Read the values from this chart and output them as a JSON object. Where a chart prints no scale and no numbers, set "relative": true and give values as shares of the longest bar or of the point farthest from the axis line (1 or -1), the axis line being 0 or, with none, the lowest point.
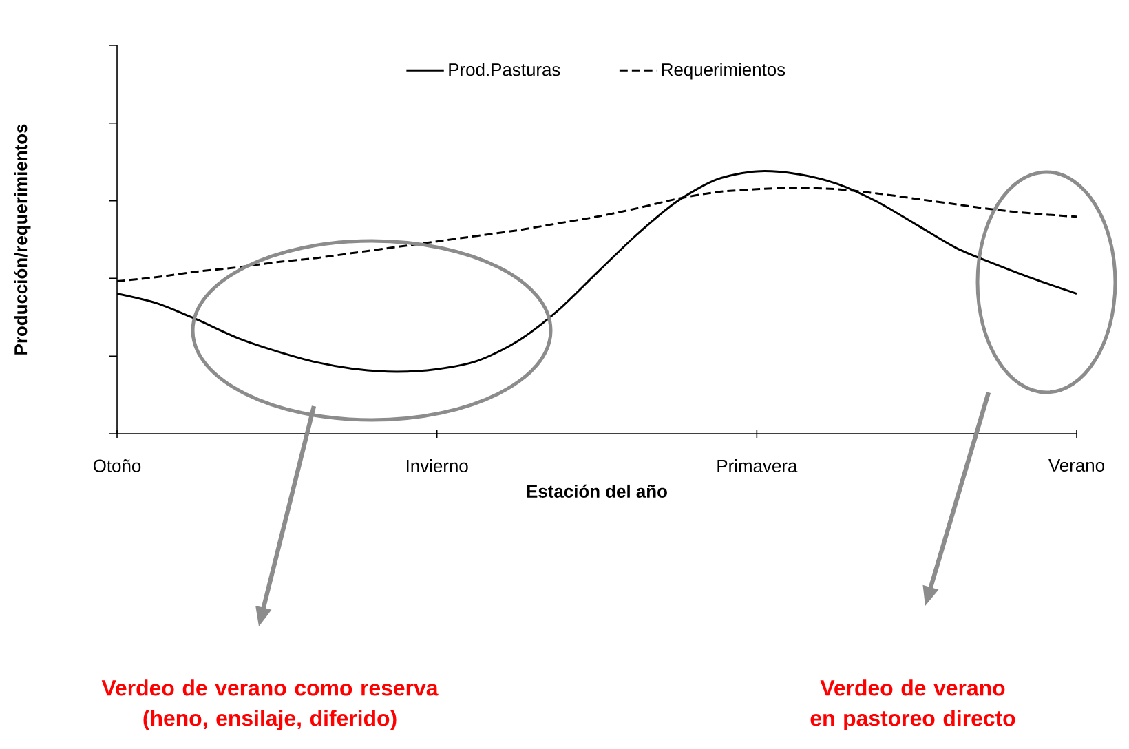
{
  "chart_data": {
    "type": "line",
    "relative": true,
    "xlabel": "Estación del año",
    "ylabel": "Producción/requerimientos",
    "categories": [
      "Otoño",
      null,
      null,
      null,
      null,
      null,
      null,
      null,
      "Invierno",
      null,
      null,
      null,
      null,
      null,
      null,
      null,
      "Primavera",
      null,
      null,
      null,
      null,
      null,
      null,
      null,
      "Verano"
    ],
    "series": [
      {
        "name": "Prod.Pasturas",
        "color": "#000000",
        "line_style": "solid",
        "values": [
          0.534,
          0.497,
          0.435,
          0.366,
          0.314,
          0.272,
          0.246,
          0.236,
          0.246,
          0.277,
          0.351,
          0.466,
          0.613,
          0.759,
          0.885,
          0.969,
          1.0,
          0.99,
          0.953,
          0.885,
          0.796,
          0.707,
          0.644,
          0.586,
          0.534
        ]
      },
      {
        "name": "Requerimientos",
        "color": "#000000",
        "line_style": "dashed",
        "values": [
          0.581,
          0.597,
          0.618,
          0.634,
          0.654,
          0.67,
          0.691,
          0.712,
          0.733,
          0.754,
          0.775,
          0.801,
          0.827,
          0.859,
          0.895,
          0.921,
          0.932,
          0.937,
          0.932,
          0.916,
          0.895,
          0.874,
          0.853,
          0.838,
          0.827
        ]
      }
    ],
    "annotations": [
      "Verdeo de verano como reserva (heno, ensilaje, diferido)",
      "Verdeo de verano en pastoreo directo"
    ],
    "legend": "top",
    "grid": false,
    "marker": "none",
    "tick_labels": "x"
  }
}
